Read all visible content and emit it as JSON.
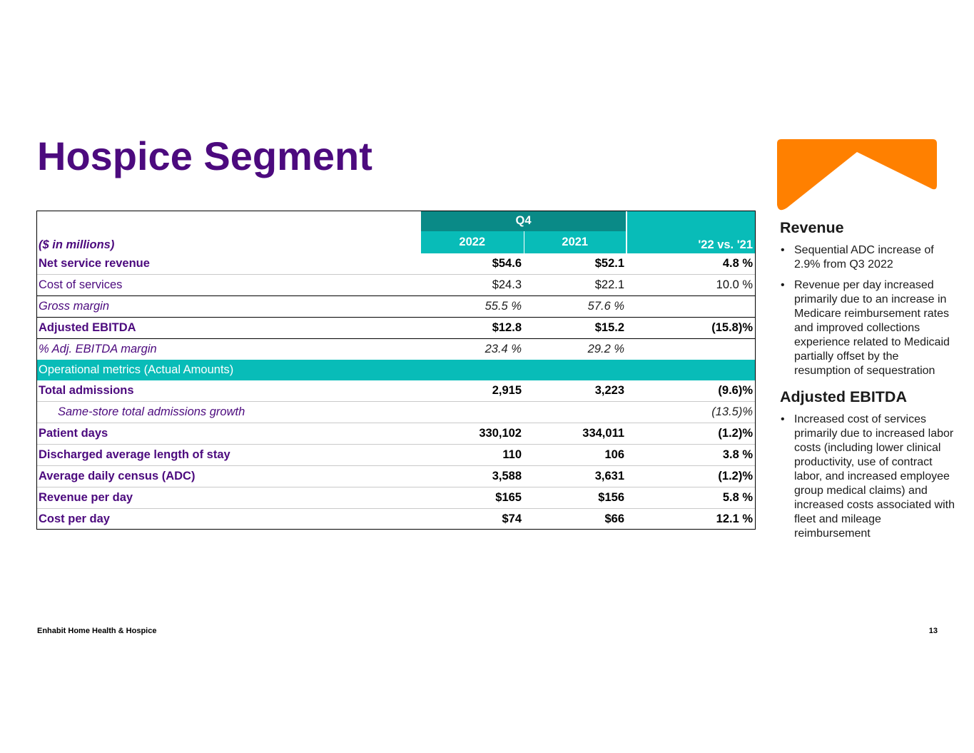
{
  "title": "Hospice Segment",
  "colors": {
    "brand_purple": "#4c0a7e",
    "teal": "#08bcb8",
    "dark_teal": "#0a8a87",
    "logo_orange": "#ff8000"
  },
  "logo": {
    "icon": "chevron-roof-logo"
  },
  "table": {
    "units_label": "($ in millions)",
    "period_header": "Q4",
    "col_2022": "2022",
    "col_2021": "2021",
    "col_change": "'22 vs. '21",
    "rows": {
      "net_revenue": {
        "label": "Net service revenue",
        "v2022": "$54.6",
        "v2021": "$52.1",
        "change": "4.8 %"
      },
      "cost_services": {
        "label": "Cost of services",
        "v2022": "$24.3",
        "v2021": "$22.1",
        "change": "10.0 %"
      },
      "gross_margin": {
        "label": "Gross margin",
        "v2022": "55.5 %",
        "v2021": "57.6 %",
        "change": ""
      },
      "adj_ebitda": {
        "label": "Adjusted EBITDA",
        "v2022": "$12.8",
        "v2021": "$15.2",
        "change": "(15.8)%"
      },
      "ebitda_margin": {
        "label": "%  Adj. EBITDA margin",
        "v2022": "23.4 %",
        "v2021": "29.2 %",
        "change": ""
      },
      "ops_header": {
        "label": "Operational metrics (Actual Amounts)"
      },
      "total_admissions": {
        "label": "Total admissions",
        "v2022": "2,915",
        "v2021": "3,223",
        "change": "(9.6)%"
      },
      "same_store": {
        "label": "Same-store total admissions growth",
        "v2022": "",
        "v2021": "",
        "change": "(13.5)%"
      },
      "patient_days": {
        "label": "Patient days",
        "v2022": "330,102",
        "v2021": "334,011",
        "change": "(1.2)%"
      },
      "alos": {
        "label": "Discharged average length of stay",
        "v2022": "110",
        "v2021": "106",
        "change": "3.8 %"
      },
      "adc": {
        "label": "Average daily census (ADC)",
        "v2022": "3,588",
        "v2021": "3,631",
        "change": "(1.2)%"
      },
      "rev_per_day": {
        "label": "Revenue per day",
        "v2022": "$165",
        "v2021": "$156",
        "change": "5.8 %"
      },
      "cost_per_day": {
        "label": "Cost per day",
        "v2022": "$74",
        "v2021": "$66",
        "change": "12.1 %"
      }
    }
  },
  "sidebar": {
    "revenue_heading": "Revenue",
    "revenue_bullets": [
      "Sequential ADC increase of 2.9% from Q3 2022",
      "Revenue per day increased primarily due to an increase in Medicare reimbursement rates and improved collections experience related to Medicaid partially offset by the resumption of sequestration"
    ],
    "ebitda_heading": "Adjusted EBITDA",
    "ebitda_bullets": [
      "Increased cost of services primarily due to increased labor costs (including lower clinical productivity, use of contract labor, and increased employee group medical claims) and increased costs associated with fleet and mileage reimbursement"
    ]
  },
  "footer": {
    "company": "Enhabit Home Health & Hospice",
    "page_number": "13"
  }
}
